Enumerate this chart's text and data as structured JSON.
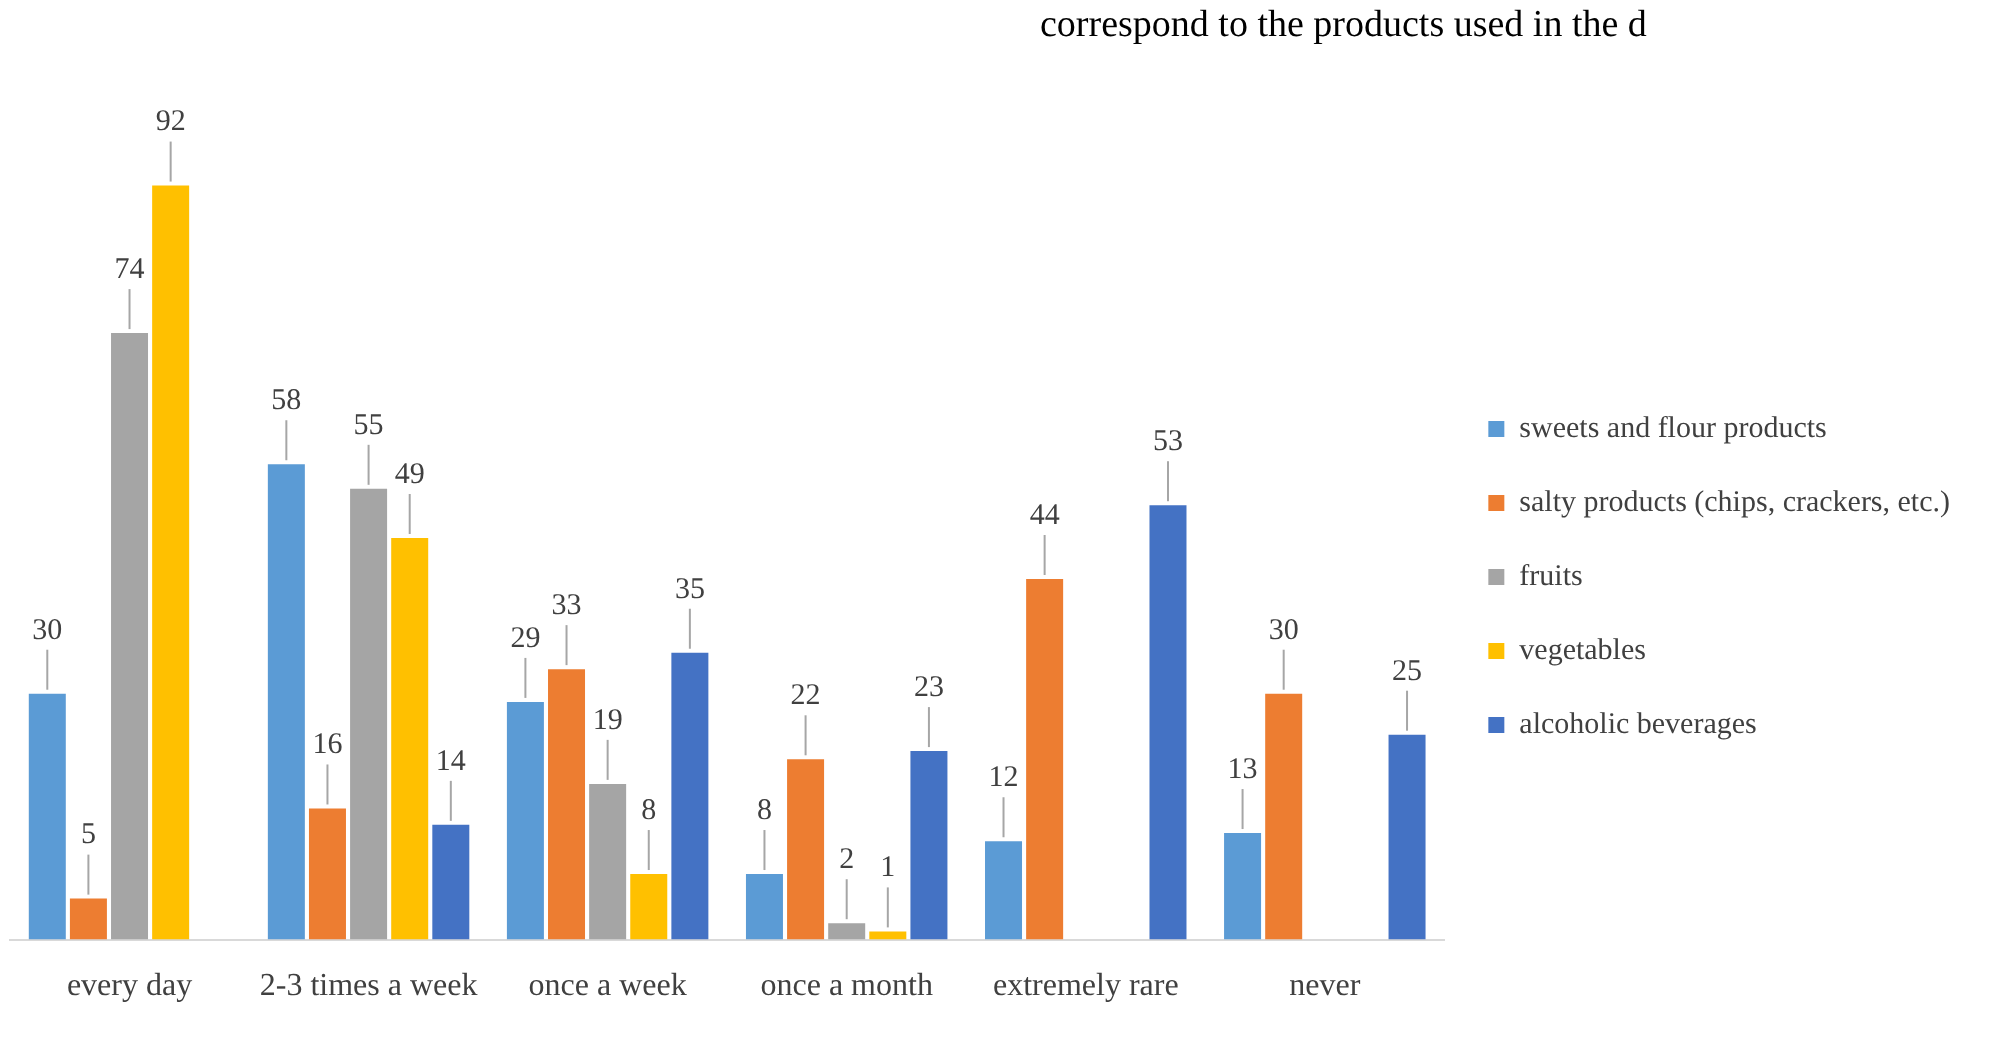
{
  "chart_data": {
    "type": "bar",
    "categories": [
      "every day",
      "2-3 times a week",
      "once a week",
      "once a month",
      "extremely rare",
      "never"
    ],
    "series": [
      {
        "name": "sweets and flour products",
        "color": "#5b9bd5",
        "values": [
          30,
          58,
          29,
          8,
          12,
          13
        ]
      },
      {
        "name": "salty products (chips, crackers, etc.)",
        "color": "#ed7d31",
        "values": [
          5,
          16,
          33,
          22,
          44,
          30
        ]
      },
      {
        "name": "fruits",
        "color": "#a5a5a5",
        "values": [
          74,
          55,
          19,
          2,
          null,
          null
        ]
      },
      {
        "name": "vegetables",
        "color": "#ffc000",
        "values": [
          92,
          49,
          8,
          1,
          null,
          null
        ]
      },
      {
        "name": "alcoholic beverages",
        "color": "#4472c4",
        "values": [
          null,
          14,
          35,
          23,
          53,
          25
        ]
      }
    ],
    "data_labels": true,
    "legend": "right",
    "grid": false,
    "tick_labels": "x",
    "annotations": [
      "correspond to the products used in the d"
    ]
  }
}
